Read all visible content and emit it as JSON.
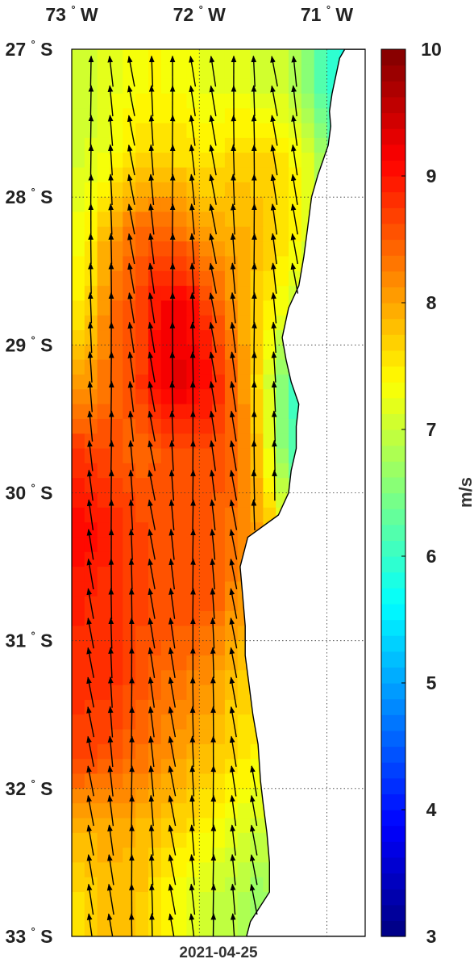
{
  "chart_data": {
    "type": "heatmap",
    "title": "",
    "date_label": "2021-04-25",
    "x_axis": {
      "range_deg_east": [
        -73.0,
        -70.7
      ],
      "ticks": [
        {
          "value": -73,
          "label": "73",
          "hemisphere": "W"
        },
        {
          "value": -72,
          "label": "72",
          "hemisphere": "W"
        },
        {
          "value": -71,
          "label": "71",
          "hemisphere": "W"
        }
      ],
      "degree_mark": "°"
    },
    "y_axis": {
      "range_deg_north": [
        -33.0,
        -27.0
      ],
      "ticks": [
        {
          "value": -27,
          "label": "27",
          "hemisphere": "S"
        },
        {
          "value": -28,
          "label": "28",
          "hemisphere": "S"
        },
        {
          "value": -29,
          "label": "29",
          "hemisphere": "S"
        },
        {
          "value": -30,
          "label": "30",
          "hemisphere": "S"
        },
        {
          "value": -31,
          "label": "31",
          "hemisphere": "S"
        },
        {
          "value": -32,
          "label": "32",
          "hemisphere": "S"
        },
        {
          "value": -33,
          "label": "33",
          "hemisphere": "S"
        }
      ]
    },
    "grid": true,
    "grid_style": "dotted",
    "colorbar": {
      "label": "m/s",
      "range": [
        3,
        10
      ],
      "ticks": [
        3,
        4,
        5,
        6,
        7,
        8,
        9,
        10
      ],
      "colormap": "jet",
      "levels": 56,
      "placement": "right"
    },
    "land_color": "#ffffff",
    "coastline_color": "#000000",
    "coastline": [
      [
        -27.0,
        -70.86
      ],
      [
        -27.06,
        -70.9
      ],
      [
        -27.18,
        -70.93
      ],
      [
        -27.3,
        -70.96
      ],
      [
        -27.42,
        -70.98
      ],
      [
        -27.52,
        -70.97
      ],
      [
        -27.65,
        -70.99
      ],
      [
        -27.75,
        -71.03
      ],
      [
        -27.85,
        -71.07
      ],
      [
        -28.0,
        -71.12
      ],
      [
        -28.2,
        -71.15
      ],
      [
        -28.4,
        -71.18
      ],
      [
        -28.6,
        -71.22
      ],
      [
        -28.75,
        -71.3
      ],
      [
        -28.95,
        -71.35
      ],
      [
        -29.1,
        -71.32
      ],
      [
        -29.25,
        -71.28
      ],
      [
        -29.4,
        -71.22
      ],
      [
        -29.55,
        -71.24
      ],
      [
        -29.7,
        -71.24
      ],
      [
        -29.85,
        -71.28
      ],
      [
        -30.0,
        -71.3
      ],
      [
        -30.15,
        -71.38
      ],
      [
        -30.3,
        -71.62
      ],
      [
        -30.5,
        -71.68
      ],
      [
        -30.7,
        -71.66
      ],
      [
        -30.9,
        -71.64
      ],
      [
        -31.1,
        -71.64
      ],
      [
        -31.3,
        -71.61
      ],
      [
        -31.5,
        -71.58
      ],
      [
        -31.7,
        -71.54
      ],
      [
        -31.95,
        -71.52
      ],
      [
        -32.1,
        -71.5
      ],
      [
        -32.3,
        -71.47
      ],
      [
        -32.5,
        -71.45
      ],
      [
        -32.7,
        -71.45
      ],
      [
        -32.9,
        -71.6
      ],
      [
        -33.0,
        -71.63
      ]
    ],
    "wind_speed_cells": {
      "lat_centers": [
        -27.25,
        -27.75,
        -28.25,
        -28.75,
        -29.25,
        -29.75,
        -30.25,
        -30.75,
        -31.25,
        -31.75,
        -32.25,
        -32.75
      ],
      "lon_centers": [
        -72.9,
        -72.7,
        -72.5,
        -72.3,
        -72.1,
        -71.9,
        -71.7,
        -71.5,
        -71.3,
        -71.1,
        -70.9
      ],
      "values": [
        [
          7.0,
          7.2,
          7.3,
          7.4,
          7.3,
          7.2,
          7.2,
          7.1,
          7.0,
          6.4,
          5.8
        ],
        [
          7.1,
          7.3,
          7.6,
          7.7,
          7.6,
          7.5,
          7.7,
          7.7,
          7.5,
          7.0,
          6.2
        ],
        [
          7.3,
          8.0,
          8.4,
          8.5,
          8.3,
          8.0,
          7.9,
          7.8,
          7.5,
          7.1,
          null
        ],
        [
          7.5,
          8.3,
          8.6,
          9.1,
          9.2,
          8.6,
          8.0,
          7.6,
          7.2,
          null,
          null
        ],
        [
          8.0,
          8.4,
          8.6,
          9.2,
          9.3,
          9.0,
          8.3,
          7.4,
          6.2,
          5.5,
          null
        ],
        [
          8.8,
          8.6,
          8.4,
          8.5,
          8.6,
          8.6,
          8.4,
          7.6,
          6.3,
          null,
          null
        ],
        [
          9.1,
          8.9,
          8.7,
          8.6,
          8.5,
          8.5,
          8.3,
          null,
          null,
          null,
          null
        ],
        [
          8.9,
          8.8,
          8.7,
          8.6,
          8.6,
          8.5,
          8.1,
          null,
          null,
          null,
          null
        ],
        [
          8.8,
          8.8,
          8.6,
          8.4,
          8.3,
          8.1,
          7.7,
          null,
          null,
          null,
          null
        ],
        [
          8.7,
          8.6,
          8.4,
          8.2,
          8.0,
          7.8,
          7.6,
          7.4,
          null,
          null,
          null
        ],
        [
          7.9,
          8.0,
          7.9,
          7.8,
          7.6,
          7.4,
          7.2,
          7.0,
          null,
          null,
          null
        ],
        [
          7.6,
          7.8,
          7.8,
          7.5,
          7.2,
          7.0,
          6.9,
          6.6,
          null,
          null,
          null
        ]
      ]
    },
    "wind_vectors": {
      "description": "arrows on a regular ocean grid",
      "lon_values": [
        -72.85,
        -72.69,
        -72.53,
        -72.37,
        -72.21,
        -72.05,
        -71.89,
        -71.73,
        -71.57,
        -71.41,
        -71.25
      ],
      "lat_step_deg": 0.2,
      "lat_start": -27.15,
      "lat_end": -32.95,
      "mean_direction_to_deg": 355,
      "direction_spread_deg": 6,
      "arrow_color": "#000000"
    }
  }
}
